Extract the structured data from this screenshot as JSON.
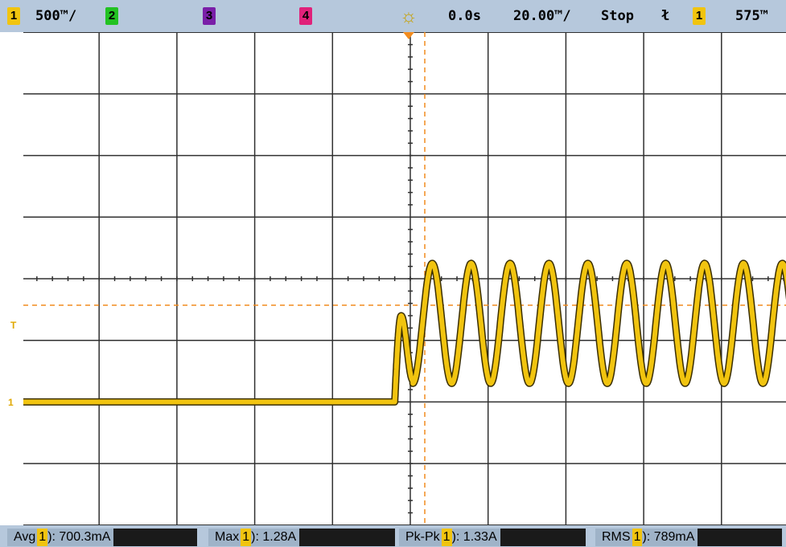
{
  "topbar": {
    "ch1_label": "1",
    "ch1_scale": "500™/",
    "ch2_label": "2",
    "ch3_label": "3",
    "ch4_label": "4",
    "time_offset": "0.0s",
    "timebase": "20.00™/",
    "run_state": "Stop",
    "trigger_channel": "1",
    "trigger_level": "575™"
  },
  "markers": {
    "trigger_marker": "T",
    "ground_marker": "1"
  },
  "measurements": [
    {
      "name": "Avg",
      "channel": "1",
      "value": "): 700.3mA"
    },
    {
      "name": "Max",
      "channel": "1",
      "value": "): 1.28A"
    },
    {
      "name": "Pk-Pk",
      "channel": "1",
      "value": "): 1.33A"
    },
    {
      "name": "RMS",
      "channel": "1",
      "value": "): 789mA"
    }
  ],
  "colors": {
    "trace": "#f1c40f",
    "trigger_cursor": "#f28c1f",
    "grid": "#303030",
    "bar": "#b6c8dc"
  },
  "chart_data": {
    "type": "line",
    "title": "",
    "xlabel": "",
    "ylabel": "",
    "divisions": {
      "x": 10,
      "y": 8
    },
    "series": [
      {
        "name": "1",
        "baseline_div": -2.0,
        "step_time_div": -0.2,
        "first_peak_div": -0.6,
        "peak_div": 0.25,
        "trough_div": -1.7,
        "period_div": 0.5,
        "cycles": 10
      }
    ],
    "grid": true
  }
}
